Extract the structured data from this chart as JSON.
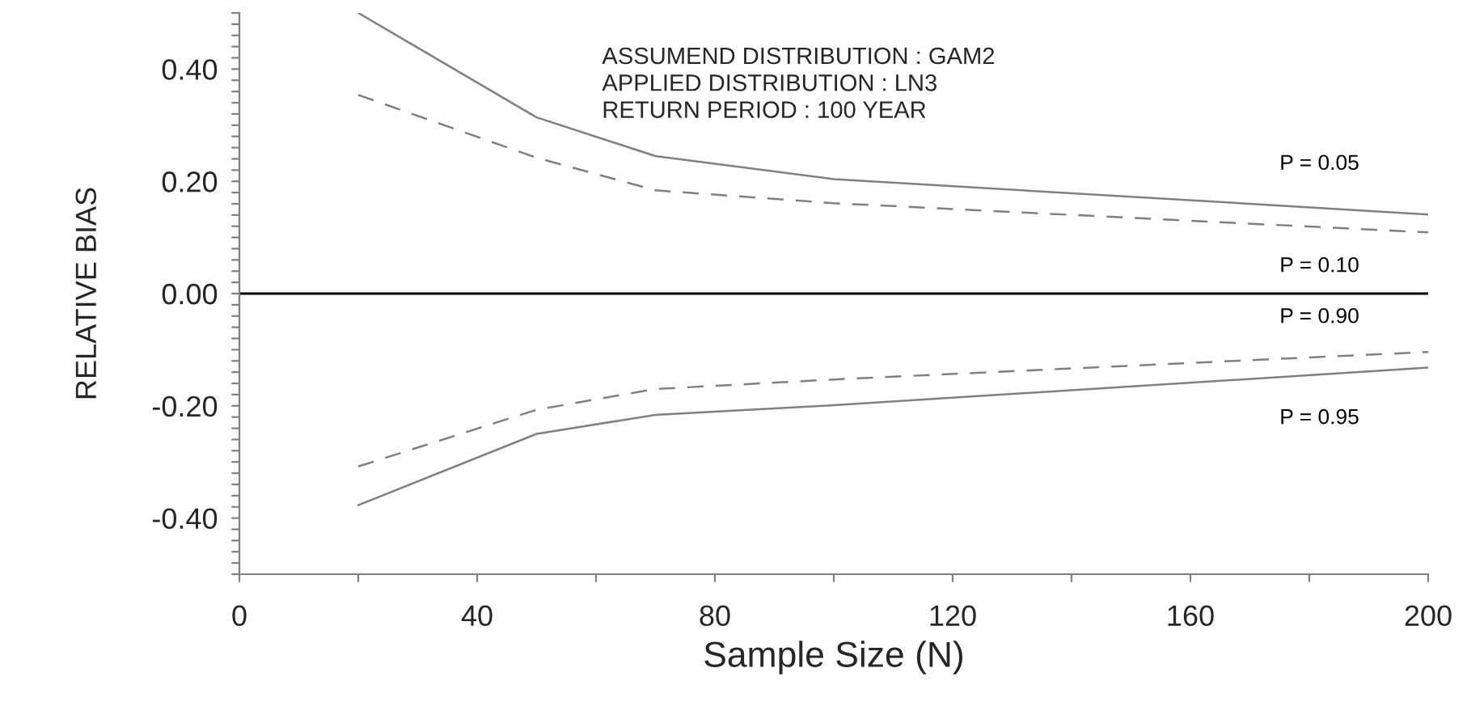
{
  "chart_data": {
    "type": "line",
    "xlabel": "Sample Size (N)",
    "ylabel": "RELATIVE BIAS",
    "annotations": [
      "ASSUMEND DISTRIBUTION : GAM2",
      "APPLIED DISTRIBUTION : LN3",
      "RETURN PERIOD : 100 YEAR"
    ],
    "x": [
      20,
      50,
      70,
      100,
      200
    ],
    "series": [
      {
        "name": "P = 0.05",
        "color": "#808080",
        "line_style": "solid",
        "values": [
          0.5,
          0.314,
          0.245,
          0.204,
          0.141
        ]
      },
      {
        "name": "P = 0.10",
        "color": "#808080",
        "line_style": "dashed",
        "values": [
          0.354,
          0.242,
          0.184,
          0.161,
          0.109
        ]
      },
      {
        "name": "P = 0.90",
        "color": "#808080",
        "line_style": "dashed",
        "values": [
          -0.308,
          -0.207,
          -0.17,
          -0.153,
          -0.104
        ]
      },
      {
        "name": "P = 0.95",
        "color": "#808080",
        "line_style": "solid",
        "values": [
          -0.377,
          -0.25,
          -0.216,
          -0.199,
          -0.132
        ]
      }
    ],
    "ref_lines": [
      {
        "axis": "y",
        "value": 0,
        "color": "#000000"
      }
    ],
    "xlim": [
      0,
      200
    ],
    "ylim": [
      -0.5,
      0.5
    ],
    "xticks": [
      0,
      {
        "value": 20,
        "label": null
      },
      40,
      {
        "value": 60,
        "label": null
      },
      80,
      {
        "value": 100,
        "label": null
      },
      120,
      {
        "value": 140,
        "label": null
      },
      160,
      {
        "value": 180,
        "label": null
      },
      200
    ],
    "yticks": [
      {
        "value": -0.5,
        "label": null
      },
      {
        "value": -0.48,
        "label": null
      },
      {
        "value": -0.46,
        "label": null
      },
      {
        "value": -0.44,
        "label": null
      },
      {
        "value": -0.42,
        "label": null
      },
      {
        "value": -0.4,
        "label": "-0.40"
      },
      {
        "value": -0.38,
        "label": null
      },
      {
        "value": -0.36,
        "label": null
      },
      {
        "value": -0.34,
        "label": null
      },
      {
        "value": -0.32,
        "label": null
      },
      {
        "value": -0.3,
        "label": null
      },
      {
        "value": -0.28,
        "label": null
      },
      {
        "value": -0.26,
        "label": null
      },
      {
        "value": -0.24,
        "label": null
      },
      {
        "value": -0.22,
        "label": null
      },
      {
        "value": -0.2,
        "label": "-0.20"
      },
      {
        "value": -0.18,
        "label": null
      },
      {
        "value": -0.16,
        "label": null
      },
      {
        "value": -0.14,
        "label": null
      },
      {
        "value": -0.12,
        "label": null
      },
      {
        "value": -0.1,
        "label": null
      },
      {
        "value": -0.08,
        "label": null
      },
      {
        "value": -0.06,
        "label": null
      },
      {
        "value": -0.04,
        "label": null
      },
      {
        "value": -0.02,
        "label": null
      },
      {
        "value": 0,
        "label": "0.00"
      },
      {
        "value": 0.02,
        "label": null
      },
      {
        "value": 0.04,
        "label": null
      },
      {
        "value": 0.06,
        "label": null
      },
      {
        "value": 0.08,
        "label": null
      },
      {
        "value": 0.1,
        "label": null
      },
      {
        "value": 0.12,
        "label": null
      },
      {
        "value": 0.14,
        "label": null
      },
      {
        "value": 0.16,
        "label": null
      },
      {
        "value": 0.18,
        "label": null
      },
      {
        "value": 0.2,
        "label": "0.20"
      },
      {
        "value": 0.22,
        "label": null
      },
      {
        "value": 0.24,
        "label": null
      },
      {
        "value": 0.26,
        "label": null
      },
      {
        "value": 0.28,
        "label": null
      },
      {
        "value": 0.3,
        "label": null
      },
      {
        "value": 0.32,
        "label": null
      },
      {
        "value": 0.34,
        "label": null
      },
      {
        "value": 0.36,
        "label": null
      },
      {
        "value": 0.38,
        "label": null
      },
      {
        "value": 0.4,
        "label": "0.40"
      },
      {
        "value": 0.42,
        "label": null
      },
      {
        "value": 0.44,
        "label": null
      },
      {
        "value": 0.46,
        "label": null
      },
      {
        "value": 0.48,
        "label": null
      },
      {
        "value": 0.5,
        "label": null
      }
    ],
    "grid": false,
    "legend": false
  }
}
